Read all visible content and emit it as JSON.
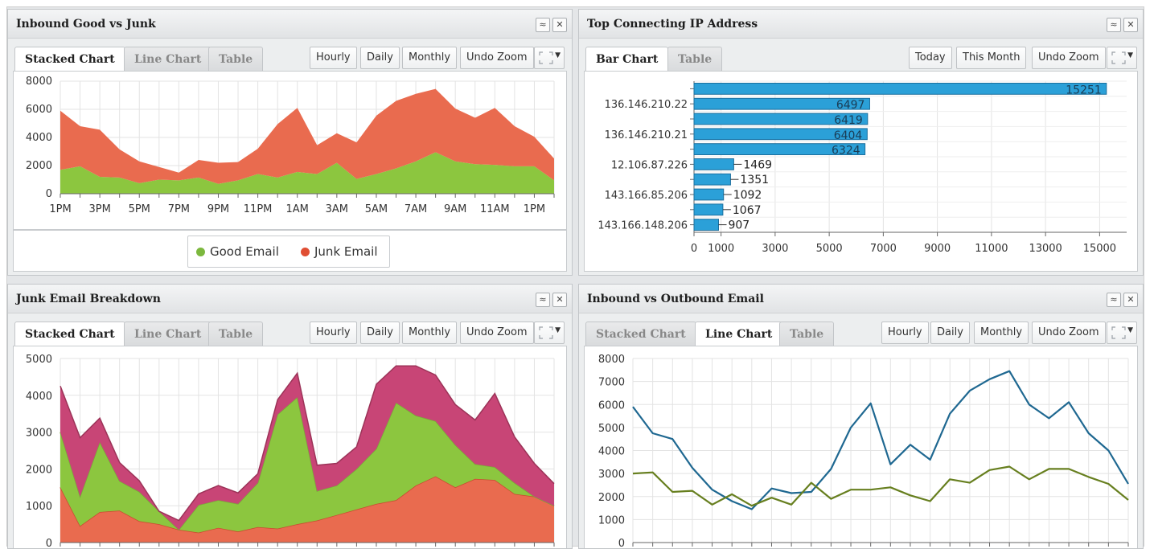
{
  "colors": {
    "good": "#8cc63f",
    "junk": "#e96b4f",
    "magenta": "#c84576",
    "line_blue": "#1f6891",
    "line_olive": "#677f1f",
    "bar": "#2ba0d8"
  },
  "panel_controls": {
    "collapse": "≈",
    "close": "✕"
  },
  "panels": {
    "inbound": {
      "title": "Inbound Good vs Junk",
      "tabs": [
        "Stacked Chart",
        "Line Chart",
        "Table"
      ],
      "buttons": [
        "Hourly",
        "Daily",
        "Monthly",
        "Undo Zoom"
      ],
      "legend": [
        "Good Email",
        "Junk Email"
      ]
    },
    "topip": {
      "title": "Top Connecting IP Address",
      "tabs": [
        "Bar Chart",
        "Table"
      ],
      "buttons": [
        "Today",
        "This Month",
        "Undo Zoom"
      ]
    },
    "junk": {
      "title": "Junk Email Breakdown",
      "tabs": [
        "Stacked Chart",
        "Line Chart",
        "Table"
      ],
      "buttons": [
        "Hourly",
        "Daily",
        "Monthly",
        "Undo Zoom"
      ]
    },
    "inout": {
      "title": "Inbound vs Outbound Email",
      "tabs": [
        "Stacked Chart",
        "Line Chart",
        "Table"
      ],
      "buttons": [
        "Hourly",
        "Daily",
        "Monthly",
        "Undo Zoom"
      ]
    }
  },
  "chart_data": [
    {
      "type": "area",
      "title": "",
      "x_ticks": [
        "1PM",
        "3PM",
        "5PM",
        "7PM",
        "9PM",
        "11PM",
        "1AM",
        "3AM",
        "5AM",
        "7AM",
        "9AM",
        "11AM",
        "1PM"
      ],
      "y_ticks": [
        0,
        2000,
        4000,
        6000,
        8000
      ],
      "ylim": [
        0,
        8000
      ],
      "stacked": true,
      "legend_position": "bottom",
      "series": [
        {
          "name": "Good Email",
          "values": [
            1700,
            1950,
            1200,
            1150,
            750,
            1000,
            950,
            1150,
            700,
            950,
            1400,
            1150,
            1550,
            1400,
            2200,
            1050,
            1400,
            1800,
            2300,
            2950,
            2300,
            2100,
            2050,
            1950,
            1950,
            950
          ]
        },
        {
          "name": "Junk Email",
          "values": [
            4200,
            2850,
            3350,
            2000,
            1550,
            900,
            550,
            1250,
            1500,
            1300,
            1800,
            3800,
            4550,
            2050,
            2100,
            2600,
            4150,
            4800,
            4800,
            4500,
            3750,
            3300,
            4050,
            2850,
            2100,
            1550
          ]
        }
      ]
    },
    {
      "type": "bar",
      "orientation": "horizontal",
      "title": "",
      "categories": [
        "",
        "136.146.210.22",
        "",
        "136.146.210.21",
        "",
        "12.106.87.226",
        "",
        "143.166.85.206",
        "",
        "143.166.148.206"
      ],
      "values": [
        15251,
        6497,
        6419,
        6404,
        6324,
        1469,
        1351,
        1092,
        1067,
        907
      ],
      "x_ticks": [
        0,
        1000,
        3000,
        5000,
        7000,
        9000,
        11000,
        13000,
        15000
      ],
      "xlim": [
        0,
        16000
      ],
      "value_labels": [
        "15251",
        "6497",
        "6419",
        "6404",
        "6324",
        "1469",
        "1351",
        "1092",
        "1067",
        "907"
      ]
    },
    {
      "type": "area",
      "title": "",
      "stacked": true,
      "y_ticks": [
        0,
        1000,
        2000,
        3000,
        4000,
        5000
      ],
      "ylim": [
        0,
        5000
      ],
      "series": [
        {
          "name": "",
          "values": [
            1500,
            450,
            830,
            870,
            580,
            500,
            350,
            270,
            400,
            300,
            420,
            380,
            500,
            600,
            750,
            900,
            1050,
            1150,
            1550,
            1800,
            1500,
            1730,
            1700,
            1320,
            1250,
            1000
          ]
        },
        {
          "name": "",
          "values": [
            1500,
            800,
            1900,
            800,
            800,
            350,
            0,
            750,
            750,
            750,
            1200,
            3100,
            3450,
            800,
            800,
            1100,
            1500,
            2650,
            1900,
            1500,
            1150,
            400,
            350,
            300,
            0,
            0
          ]
        },
        {
          "name": "",
          "values": [
            1250,
            1600,
            650,
            500,
            300,
            0,
            250,
            300,
            400,
            300,
            250,
            400,
            650,
            700,
            600,
            600,
            1750,
            1000,
            1350,
            1250,
            1100,
            1200,
            2000,
            1250,
            900,
            600
          ]
        }
      ]
    },
    {
      "type": "line",
      "title": "",
      "y_ticks": [
        0,
        1000,
        2000,
        3000,
        4000,
        5000,
        6000,
        7000,
        8000
      ],
      "ylim": [
        0,
        8000
      ],
      "series": [
        {
          "name": "",
          "values": [
            5900,
            4750,
            4500,
            3250,
            2300,
            1800,
            1450,
            2350,
            2150,
            2200,
            3200,
            5000,
            6050,
            3400,
            4250,
            3600,
            5600,
            6600,
            7100,
            7450,
            6000,
            5400,
            6100,
            4750,
            4000,
            2550
          ]
        },
        {
          "name": "",
          "values": [
            3000,
            3050,
            2200,
            2250,
            1650,
            2100,
            1600,
            1950,
            1650,
            2600,
            1900,
            2300,
            2300,
            2400,
            2050,
            1800,
            2750,
            2600,
            3150,
            3300,
            2750,
            3200,
            3200,
            2850,
            2550,
            1850
          ]
        }
      ]
    }
  ]
}
